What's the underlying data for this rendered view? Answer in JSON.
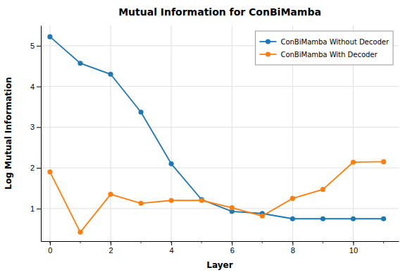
{
  "chart_data": {
    "type": "line",
    "title": "Mutual Information for ConBiMamba",
    "xlabel": "Layer",
    "ylabel": "Log Mutual Information",
    "x": [
      0,
      1,
      2,
      3,
      4,
      5,
      6,
      7,
      8,
      9,
      10,
      11
    ],
    "series": [
      {
        "name": "ConBiMamba Without Decoder",
        "color": "#1f77b4",
        "marker": "circle",
        "values": [
          5.22,
          4.57,
          4.3,
          3.37,
          2.1,
          1.22,
          0.93,
          0.88,
          0.75,
          0.75,
          0.75,
          0.75
        ]
      },
      {
        "name": "ConBiMamba With Decoder",
        "color": "#ff7f0e",
        "marker": "circle",
        "values": [
          1.9,
          0.42,
          1.35,
          1.13,
          1.2,
          1.2,
          1.02,
          0.82,
          1.25,
          1.47,
          2.14,
          2.15
        ]
      }
    ],
    "xlim": [
      -0.3,
      11.5
    ],
    "ylim": [
      0.2,
      5.5
    ],
    "xticks": [
      0,
      2,
      4,
      6,
      8,
      10
    ],
    "yticks": [
      1,
      2,
      3,
      4,
      5
    ],
    "grid": true,
    "legend": "upper right"
  }
}
